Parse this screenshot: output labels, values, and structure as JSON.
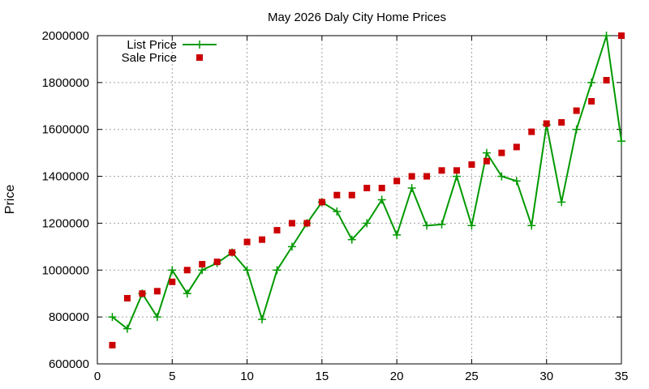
{
  "chart_data": {
    "type": "line",
    "title": "May 2026 Daly City Home Prices",
    "xlabel": "",
    "ylabel": "Price",
    "xlim": [
      0,
      35
    ],
    "ylim": [
      600000,
      2000000
    ],
    "xticks": [
      0,
      5,
      10,
      15,
      20,
      25,
      30,
      35
    ],
    "yticks": [
      600000,
      800000,
      1000000,
      1200000,
      1400000,
      1600000,
      1800000,
      2000000
    ],
    "grid": true,
    "legend": "top-left",
    "series": [
      {
        "name": "List Price",
        "style": "line-plus",
        "color": "#009900",
        "x": [
          1,
          2,
          3,
          4,
          5,
          6,
          7,
          8,
          9,
          10,
          11,
          12,
          13,
          14,
          15,
          16,
          17,
          18,
          19,
          20,
          21,
          22,
          23,
          24,
          25,
          26,
          27,
          28,
          29,
          30,
          31,
          32,
          33,
          34,
          35
        ],
        "values": [
          800000,
          750000,
          900000,
          800000,
          1000000,
          900000,
          1000000,
          1030000,
          1075000,
          1000000,
          790000,
          1000000,
          1100000,
          1200000,
          1290000,
          1250000,
          1130000,
          1200000,
          1300000,
          1150000,
          1350000,
          1190000,
          1195000,
          1400000,
          1190000,
          1500000,
          1400000,
          1380000,
          1190000,
          1620000,
          1290000,
          1600000,
          1800000,
          2000000,
          1550000
        ]
      },
      {
        "name": "Sale Price",
        "style": "square",
        "color": "#cc0000",
        "x": [
          1,
          2,
          3,
          4,
          5,
          6,
          7,
          8,
          9,
          10,
          11,
          12,
          13,
          14,
          15,
          16,
          17,
          18,
          19,
          20,
          21,
          22,
          23,
          24,
          25,
          26,
          27,
          28,
          29,
          30,
          31,
          32,
          33,
          34,
          35
        ],
        "values": [
          680000,
          880000,
          900000,
          910000,
          950000,
          1000000,
          1025000,
          1035000,
          1075000,
          1120000,
          1130000,
          1170000,
          1200000,
          1200000,
          1290000,
          1320000,
          1320000,
          1350000,
          1350000,
          1380000,
          1400000,
          1400000,
          1425000,
          1425000,
          1450000,
          1465000,
          1500000,
          1525000,
          1590000,
          1625000,
          1630000,
          1680000,
          1720000,
          1810000,
          2000000
        ]
      }
    ]
  }
}
